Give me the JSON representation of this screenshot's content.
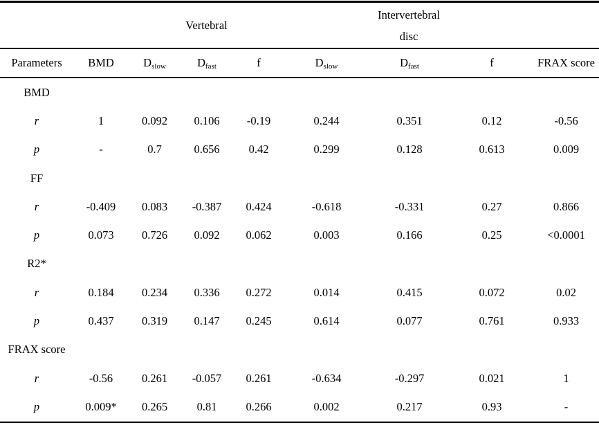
{
  "table": {
    "group_headers": [
      {
        "label": "",
        "span": 2
      },
      {
        "label": "Vertebral",
        "span": 3
      },
      {
        "label": "Intervertebral\ndisc",
        "span": 3
      },
      {
        "label": "",
        "span": 1
      }
    ],
    "columns": [
      {
        "label": "Parameters"
      },
      {
        "label": "BMD"
      },
      {
        "base": "D",
        "sub": "slow"
      },
      {
        "base": "D",
        "sub": "fast"
      },
      {
        "label": "f"
      },
      {
        "base": "D",
        "sub": "slow"
      },
      {
        "base": "D",
        "sub": "fast"
      },
      {
        "label": "f"
      },
      {
        "label": "FRAX score"
      }
    ],
    "sections": [
      {
        "name": "BMD",
        "rows": [
          {
            "label": "r",
            "values": [
              "1",
              "0.092",
              "0.106",
              "-0.19",
              "0.244",
              "0.351",
              "0.12",
              "-0.56"
            ]
          },
          {
            "label": "p",
            "values": [
              "-",
              "0.7",
              "0.656",
              "0.42",
              "0.299",
              "0.128",
              "0.613",
              "0.009"
            ]
          }
        ]
      },
      {
        "name": "FF",
        "rows": [
          {
            "label": "r",
            "values": [
              "-0.409",
              "0.083",
              "-0.387",
              "0.424",
              "-0.618",
              "-0.331",
              "0.27",
              "0.866"
            ]
          },
          {
            "label": "p",
            "values": [
              "0.073",
              "0.726",
              "0.092",
              "0.062",
              "0.003",
              "0.166",
              "0.25",
              "<0.0001"
            ]
          }
        ]
      },
      {
        "name": "R2*",
        "rows": [
          {
            "label": "r",
            "values": [
              "0.184",
              "0.234",
              "0.336",
              "0.272",
              "0.014",
              "0.415",
              "0.072",
              "0.02"
            ]
          },
          {
            "label": "p",
            "values": [
              "0.437",
              "0.319",
              "0.147",
              "0.245",
              "0.614",
              "0.077",
              "0.761",
              "0.933"
            ]
          }
        ]
      },
      {
        "name": "FRAX score",
        "rows": [
          {
            "label": "r",
            "values": [
              "-0.56",
              "0.261",
              "-0.057",
              "0.261",
              "-0.634",
              "-0.297",
              "0.021",
              "1"
            ]
          },
          {
            "label": "p",
            "values": [
              "0.009*",
              "0.265",
              "0.81",
              "0.266",
              "0.002",
              "0.217",
              "0.93",
              "-"
            ]
          }
        ]
      }
    ]
  }
}
